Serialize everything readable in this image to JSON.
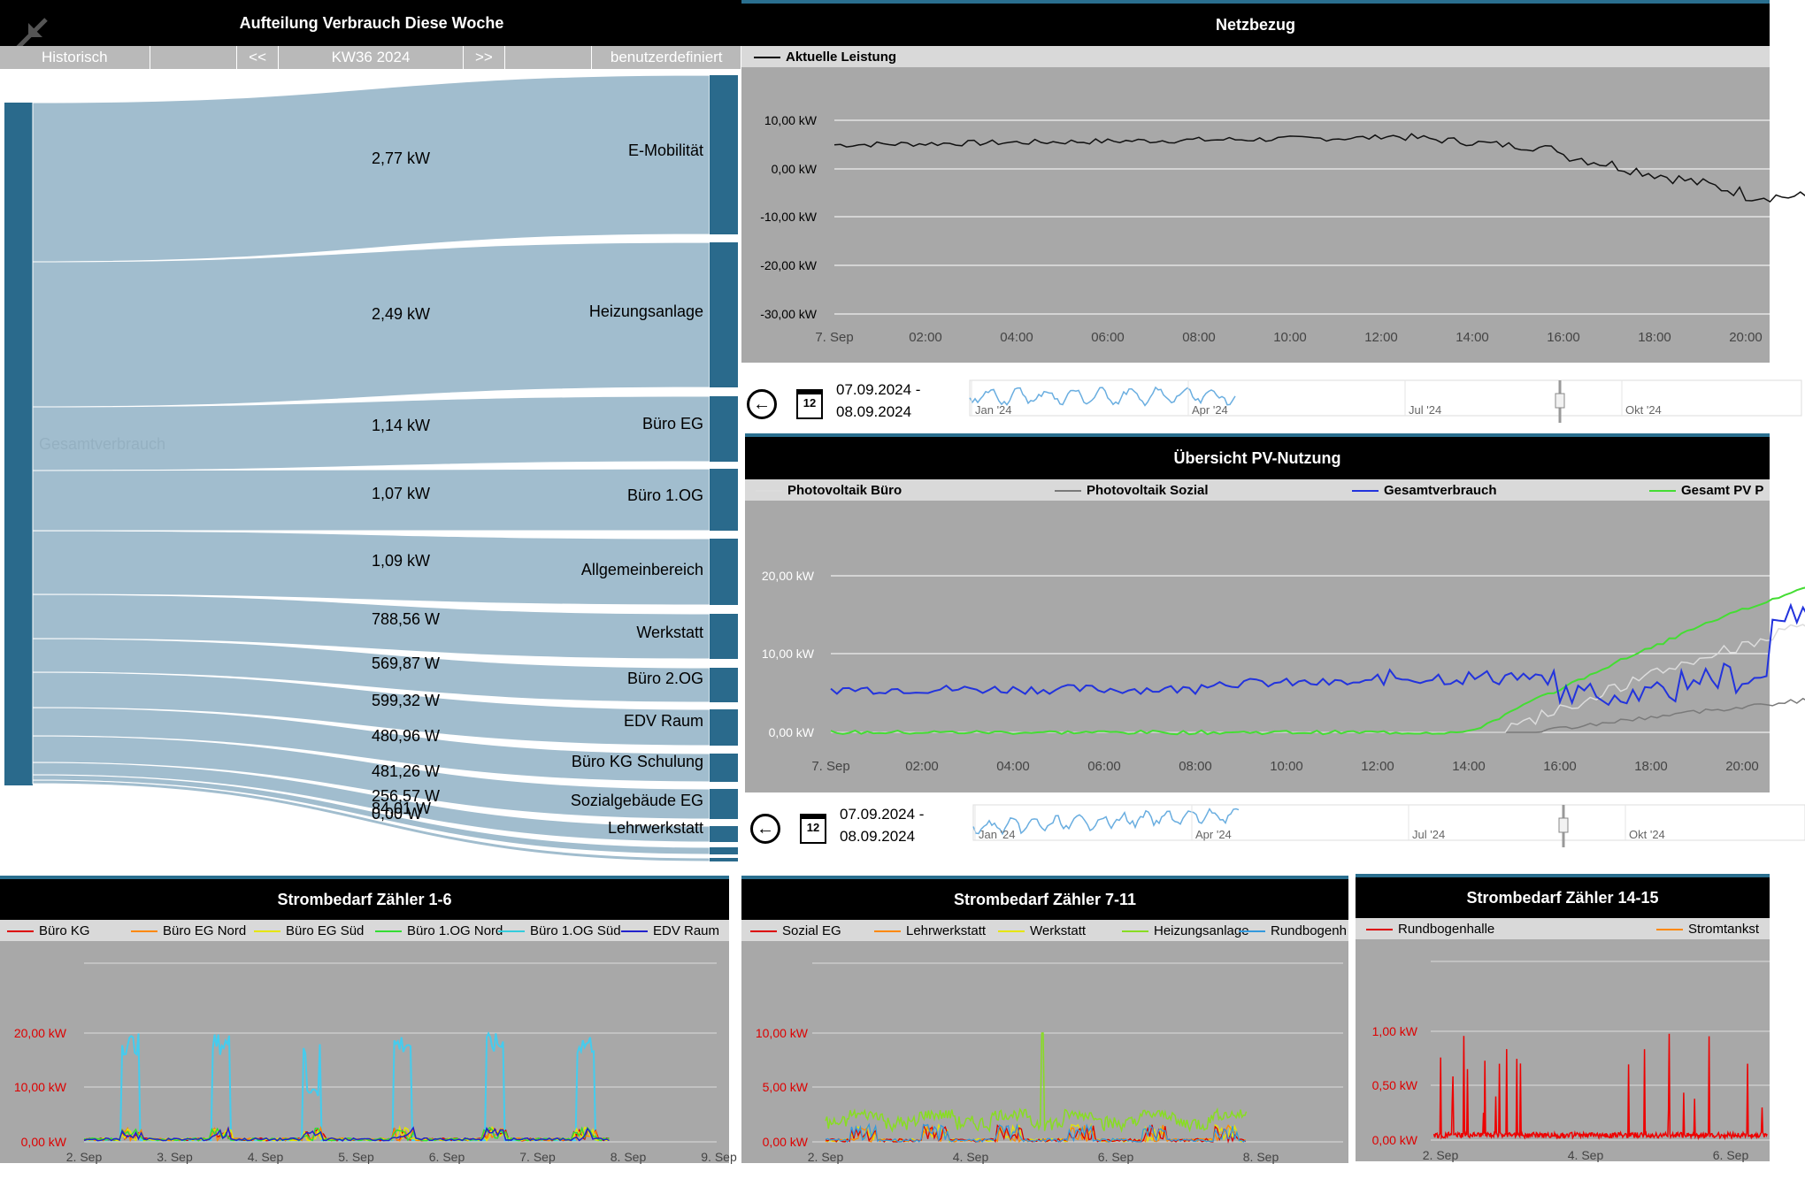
{
  "sankey": {
    "title": "Aufteilung Verbrauch Diese Woche",
    "nav": {
      "historisch": "Historisch",
      "prev": "<<",
      "week": "KW36 2024",
      "next": ">>",
      "custom": "benutzerdefiniert"
    },
    "source": "Gesamtverbrauch",
    "targets": [
      {
        "name": "E-Mobilität",
        "value": "2,77 kW"
      },
      {
        "name": "Heizungsanlage",
        "value": "2,49 kW"
      },
      {
        "name": "Büro EG",
        "value": "1,14 kW"
      },
      {
        "name": "Büro 1.OG",
        "value": "1,07 kW"
      },
      {
        "name": "Allgemeinbereich",
        "value": "1,09 kW"
      },
      {
        "name": "Werkstatt",
        "value": "788,56 W"
      },
      {
        "name": "Büro 2.OG",
        "value": "569,87 W"
      },
      {
        "name": "EDV Raum",
        "value": "599,32 W"
      },
      {
        "name": "Büro KG Schulung",
        "value": "480,96 W"
      },
      {
        "name": "Sozialgebäude EG",
        "value": "481,26 W"
      },
      {
        "name": "Lehrwerkstatt",
        "value": "256,57 W"
      },
      {
        "name": "",
        "value": "84,01 W"
      },
      {
        "name": "",
        "value": "0,00 W"
      }
    ]
  },
  "netz": {
    "title": "Netzbezug",
    "legend": "Aktuelle Leistung",
    "yticks": [
      "10,00 kW",
      "0,00 kW",
      "-10,00 kW",
      "-20,00 kW",
      "-30,00 kW"
    ],
    "xticks": [
      "7. Sep",
      "02:00",
      "04:00",
      "06:00",
      "08:00",
      "10:00",
      "12:00",
      "14:00",
      "16:00",
      "18:00",
      "20:00"
    ],
    "date_from": "07.09.2024 -",
    "date_to": "08.09.2024",
    "nav_ticks": [
      "Jan '24",
      "Apr '24",
      "Jul '24",
      "Okt '24"
    ]
  },
  "pv": {
    "title": "Übersicht PV-Nutzung",
    "legend": [
      "Photovoltaik Büro",
      "Photovoltaik Sozial",
      "Gesamtverbrauch",
      "Gesamt PV P"
    ],
    "yticks": [
      "20,00 kW",
      "10,00 kW",
      "0,00 kW"
    ],
    "xticks": [
      "7. Sep",
      "02:00",
      "04:00",
      "06:00",
      "08:00",
      "10:00",
      "12:00",
      "14:00",
      "16:00",
      "18:00",
      "20:00"
    ],
    "date_from": "07.09.2024 -",
    "date_to": "08.09.2024",
    "nav_ticks": [
      "Jan '24",
      "Apr '24",
      "Jul '24",
      "Okt '24"
    ]
  },
  "z16": {
    "title": "Strombedarf Zähler 1-6",
    "legend": [
      "Büro KG",
      "Büro EG Nord",
      "Büro EG Süd",
      "Büro 1.OG Nord",
      "Büro 1.OG Süd",
      "EDV Raum"
    ],
    "yticks": [
      "20,00 kW",
      "10,00 kW",
      "0,00 kW"
    ],
    "xticks": [
      "2. Sep",
      "3. Sep",
      "4. Sep",
      "5. Sep",
      "6. Sep",
      "7. Sep",
      "8. Sep",
      "9. Sep"
    ]
  },
  "z711": {
    "title": "Strombedarf Zähler 7-11",
    "legend": [
      "Sozial EG",
      "Lehrwerkstatt",
      "Werkstatt",
      "Heizungsanlage",
      "Rundbogenh"
    ],
    "yticks": [
      "10,00 kW",
      "5,00 kW",
      "0,00 kW"
    ],
    "xticks": [
      "2. Sep",
      "4. Sep",
      "6. Sep",
      "8. Sep"
    ]
  },
  "z1415": {
    "title": "Strombedarf Zähler 14-15",
    "legend": [
      "Rundbogenhalle",
      "Stromtankst"
    ],
    "yticks": [
      "1,00 kW",
      "0,50 kW",
      "0,00 kW"
    ],
    "xticks": [
      "2. Sep",
      "4. Sep",
      "6. Sep"
    ]
  },
  "colors": {
    "sankey_node": "#2a6a8c",
    "sankey_link": "#9cb9cb",
    "plot_bg": "#a8a8a8",
    "accent": "#2a6f8f"
  }
}
